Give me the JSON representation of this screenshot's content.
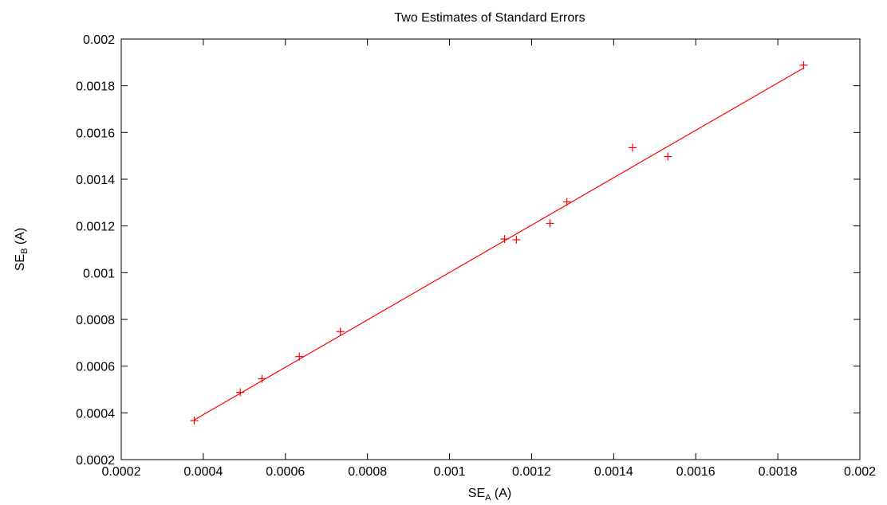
{
  "chart_data": {
    "type": "scatter",
    "title": "Two Estimates of Standard Errors",
    "xlabel": {
      "main": "SE",
      "sub": "A",
      "suffix": " (A)"
    },
    "ylabel": {
      "main": "SE",
      "sub": "B",
      "suffix": " (A)"
    },
    "xlim": [
      0.0002,
      0.002
    ],
    "ylim": [
      0.0002,
      0.002
    ],
    "xticks": [
      0.0002,
      0.0004,
      0.0006,
      0.0008,
      0.001,
      0.0012,
      0.0014,
      0.0016,
      0.0018,
      0.002
    ],
    "xtick_labels": [
      "0.0002",
      "0.0004",
      "0.0006",
      "0.0008",
      "0.001",
      "0.0012",
      "0.0014",
      "0.0016",
      "0.0018",
      "0.002"
    ],
    "yticks": [
      0.0002,
      0.0004,
      0.0006,
      0.0008,
      0.001,
      0.0012,
      0.0014,
      0.0016,
      0.0018,
      0.002
    ],
    "ytick_labels": [
      "0.0002",
      "0.0004",
      "0.0006",
      "0.0008",
      "0.001",
      "0.0012",
      "0.0014",
      "0.0016",
      "0.0018",
      "0.002"
    ],
    "grid": false,
    "legend": "none",
    "color": "#ff0000",
    "series": [
      {
        "marker": "+",
        "x": [
          0.000378,
          0.00049,
          0.000543,
          0.000634,
          0.000734,
          0.001134,
          0.001163,
          0.001245,
          0.001286,
          0.001446,
          0.001532,
          0.001863
        ],
        "y": [
          0.000367,
          0.000488,
          0.000546,
          0.000641,
          0.000748,
          0.001144,
          0.001141,
          0.001211,
          0.001303,
          0.001535,
          0.001497,
          0.001888
        ]
      }
    ],
    "fit_line": {
      "x": [
        0.000378,
        0.001863
      ],
      "y": [
        0.00037,
        0.001876
      ]
    }
  }
}
